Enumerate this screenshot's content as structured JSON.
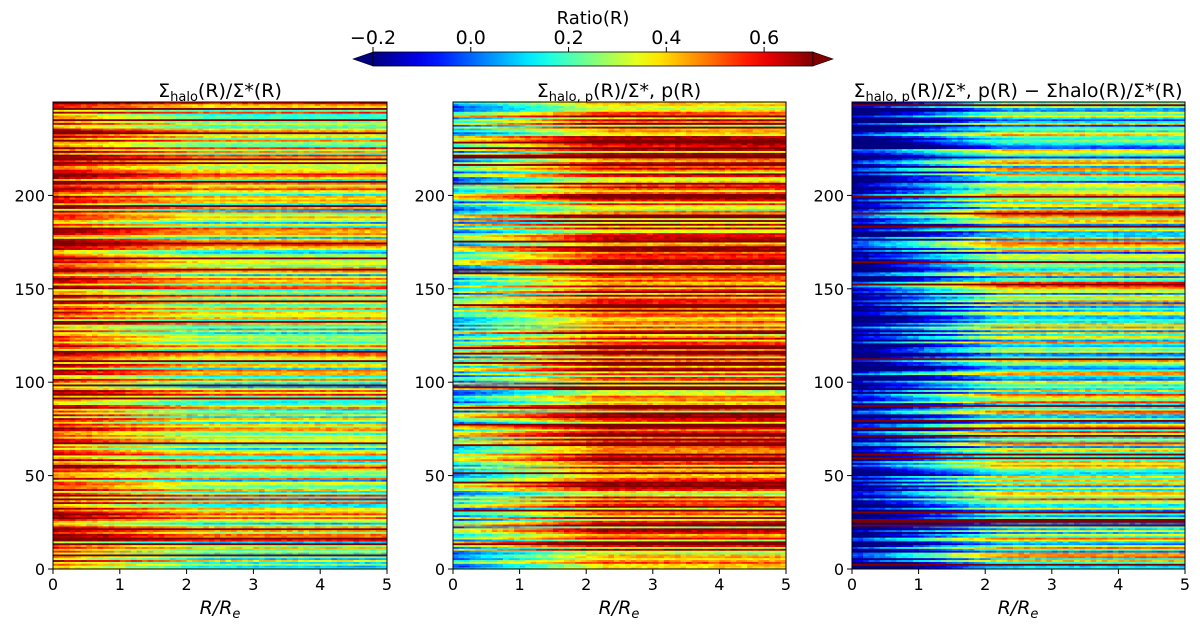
{
  "colorbar": {
    "label": "Ratio(R)",
    "range": [
      -0.2,
      0.7
    ],
    "ticks": [
      -0.2,
      0.0,
      0.2,
      0.4,
      0.6
    ],
    "tick_labels": [
      "−0.2",
      "0.0",
      "0.2",
      "0.4",
      "0.6"
    ],
    "extend": "both",
    "colormap": "jet"
  },
  "chart_data": [
    {
      "type": "heatmap",
      "title": "Σhalo(R)/Σ*(R)",
      "title_main": "Σ",
      "title_sub": "halo",
      "title_rest": "(R)/Σ*(R)",
      "xlabel": "R/Re",
      "xlim": [
        0,
        5
      ],
      "ylim": [
        0,
        250
      ],
      "xticks": [
        0,
        1,
        2,
        3,
        4,
        5
      ],
      "yticks": [
        0,
        50,
        100,
        150,
        200
      ],
      "n_rows": 250,
      "n_cols": 60,
      "profile": {
        "inner": 0.55,
        "outer": 0.32,
        "spread": 0.22,
        "noise": 0.08
      },
      "seed": 11
    },
    {
      "type": "heatmap",
      "title": "Σhalo,p(R)/Σ*,p(R)",
      "title_main": "Σ",
      "title_sub": "halo, p",
      "title_rest": "(R)/Σ*, p(R)",
      "xlabel": "R/Re",
      "xlim": [
        0,
        5
      ],
      "ylim": [
        0,
        250
      ],
      "xticks": [
        0,
        1,
        2,
        3,
        4,
        5
      ],
      "yticks": [
        0,
        50,
        100,
        150,
        200
      ],
      "n_rows": 250,
      "n_cols": 60,
      "profile": {
        "inner": 0.18,
        "outer": 0.55,
        "spread": 0.25,
        "noise": 0.08
      },
      "seed": 23
    },
    {
      "type": "heatmap",
      "title": "Σhalo,p(R)/Σ*,p(R) − Σhalo(R)/Σ*(R)",
      "title_main": "Σ",
      "title_sub": "halo, p",
      "title_rest": "(R)/Σ*, p(R) − Σhalo(R)/Σ*(R)",
      "xlabel": "R/Re",
      "xlim": [
        0,
        5
      ],
      "ylim": [
        0,
        250
      ],
      "xticks": [
        0,
        1,
        2,
        3,
        4,
        5
      ],
      "yticks": [
        0,
        50,
        100,
        150,
        200
      ],
      "n_rows": 250,
      "n_cols": 60,
      "profile": {
        "inner": -0.25,
        "outer": 0.25,
        "spread": 0.25,
        "noise": 0.08
      },
      "seed": 37
    }
  ]
}
